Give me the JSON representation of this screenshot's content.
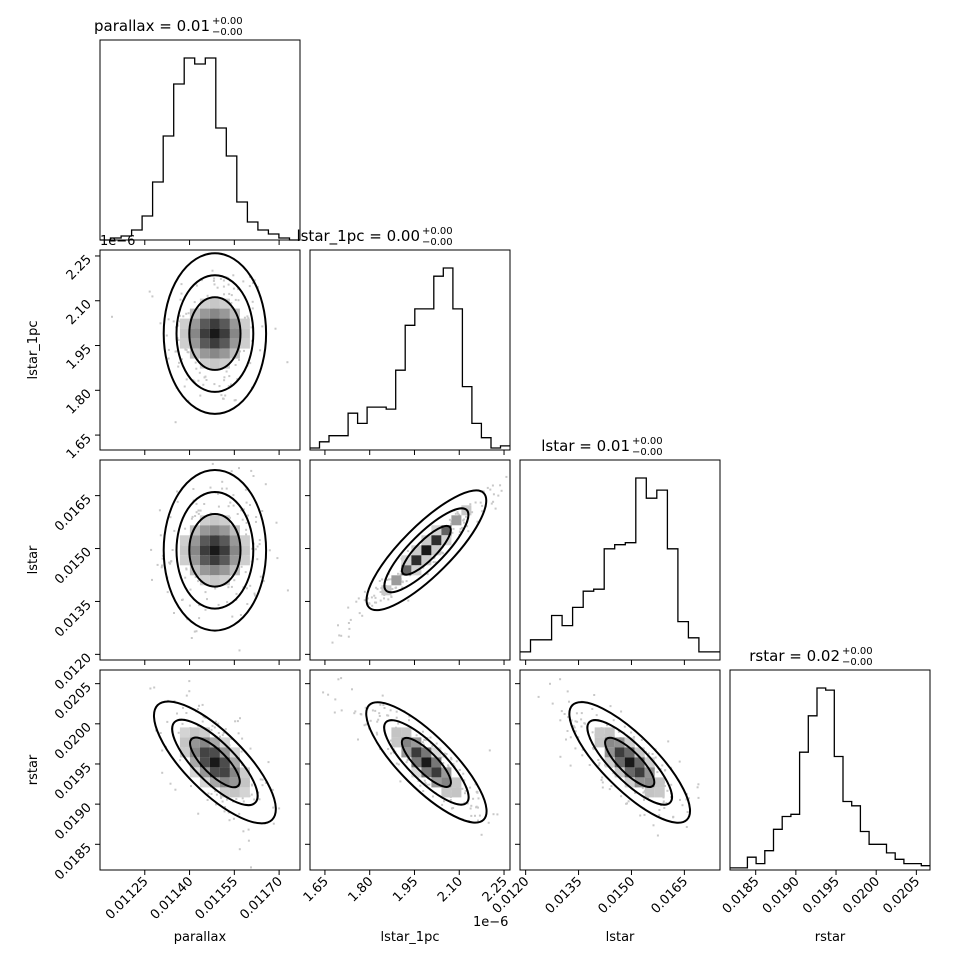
{
  "chart_data": {
    "type": "corner",
    "parameters": [
      "parallax",
      "lstar_1pc",
      "lstar",
      "rstar"
    ],
    "titles": [
      {
        "param": "parallax",
        "text": "parallax = 0.01",
        "sup": "+0.00",
        "sub": "−0.00"
      },
      {
        "param": "lstar_1pc",
        "text": "lstar_1pc = 0.00",
        "sup": "+0.00",
        "sub": "−0.00"
      },
      {
        "param": "lstar",
        "text": "lstar = 0.01",
        "sup": "+0.00",
        "sub": "−0.00"
      },
      {
        "param": "rstar",
        "text": "rstar = 0.02",
        "sup": "+0.00",
        "sub": "−0.00"
      }
    ],
    "axes": {
      "parallax": {
        "range": [
          0.0111,
          0.01177
        ],
        "ticks": [
          0.01125,
          0.0114,
          0.01155,
          0.0117
        ],
        "tick_labels": [
          "0.01125",
          "0.01140",
          "0.01155",
          "0.01170"
        ],
        "label": "parallax"
      },
      "lstar_1pc": {
        "range": [
          1.6,
          2.27
        ],
        "ticks": [
          1.65,
          1.8,
          1.95,
          2.1,
          2.25
        ],
        "tick_labels": [
          "1.65",
          "1.80",
          "1.95",
          "2.10",
          "2.25"
        ],
        "label": "lstar_1pc",
        "offset_text": "1e−6"
      },
      "lstar": {
        "range": [
          0.01184,
          0.01751
        ],
        "ticks": [
          0.012,
          0.0135,
          0.015,
          0.0165
        ],
        "tick_labels": [
          "0.0120",
          "0.0135",
          "0.0150",
          "0.0165"
        ],
        "label": "lstar"
      },
      "rstar": {
        "range": [
          0.01818,
          0.02067
        ],
        "ticks": [
          0.0185,
          0.019,
          0.0195,
          0.02,
          0.0205
        ],
        "tick_labels": [
          "0.0185",
          "0.0190",
          "0.0195",
          "0.0200",
          "0.0205"
        ],
        "label": "rstar"
      }
    },
    "histograms": [
      {
        "param": "parallax",
        "counts": [
          0,
          1,
          2,
          5,
          12,
          29,
          52,
          78,
          91,
          88,
          91,
          56,
          42,
          19,
          9,
          5,
          3,
          1,
          0
        ]
      },
      {
        "param": "lstar_1pc",
        "counts": [
          1,
          4,
          7,
          7,
          18,
          13,
          21,
          21,
          20,
          39,
          61,
          69,
          69,
          85,
          89,
          69,
          31,
          13,
          6,
          1,
          2
        ]
      },
      {
        "param": "lstar",
        "counts": [
          4,
          10,
          10,
          22,
          17,
          26,
          34,
          35,
          55,
          57,
          58,
          90,
          80,
          84,
          55,
          19,
          11,
          4,
          4
        ]
      },
      {
        "param": "rstar",
        "counts": [
          1,
          1,
          6,
          3,
          9,
          19,
          25,
          26,
          55,
          72,
          85,
          84,
          53,
          32,
          30,
          18,
          12,
          12,
          8,
          5,
          3,
          3,
          2
        ]
      }
    ],
    "grid": false,
    "legend": "none"
  }
}
